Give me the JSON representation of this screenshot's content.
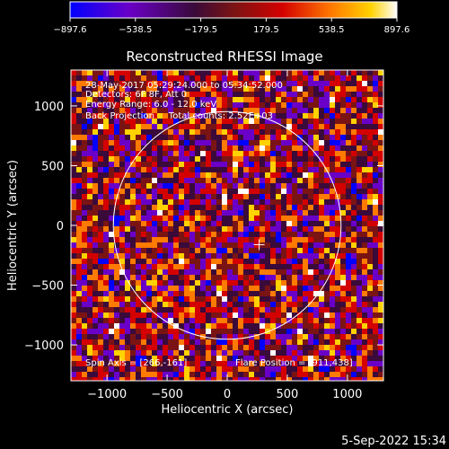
{
  "chart_data": {
    "type": "heatmap",
    "title": "Reconstructed RHESSI Image",
    "xlabel": "Heliocentric X (arcsec)",
    "ylabel": "Heliocentric Y (arcsec)",
    "xlim": [
      -1300,
      1300
    ],
    "ylim": [
      -1300,
      1300
    ],
    "x_ticks": [
      -1000,
      -500,
      0,
      500,
      1000
    ],
    "x_tick_labels": [
      "−1000",
      "−500",
      "0",
      "500",
      "1000"
    ],
    "y_ticks": [
      -1000,
      -500,
      0,
      500,
      1000
    ],
    "y_tick_labels": [
      "−1000",
      "−500",
      "0",
      "500",
      "1000"
    ],
    "colorbar": {
      "range": [
        -897.6,
        897.6
      ],
      "tick_values": [
        -897.6,
        -538.5,
        -179.5,
        179.5,
        538.5,
        897.6
      ],
      "tick_labels": [
        "−897.6",
        "−538.5",
        "−179.5",
        "179.5",
        "538.5",
        "897.6"
      ],
      "colors": [
        "#0000ff",
        "#6a00c8",
        "#3a0a3a",
        "#7a1414",
        "#d40000",
        "#ff7a00",
        "#ffd200",
        "#ffffff"
      ]
    },
    "annotations": [
      "28-May-2017 05:29:24.000 to 05:34:52.000",
      "Detectors: 6F 8F, Att 0",
      "Energy Range: 6.0 - 12.0 keV",
      "Back Projection     Total counts: 2.52E+03"
    ],
    "spin_axis_label": "Spin Axis = [266,-161]",
    "flare_position_label": "Flare Position = [911,438]",
    "solar_disk_radius": 947,
    "spin_axis": [
      266,
      -161
    ],
    "grid": false,
    "legend": "none"
  },
  "footer": {
    "date_stamp": "5-Sep-2022 15:34"
  }
}
